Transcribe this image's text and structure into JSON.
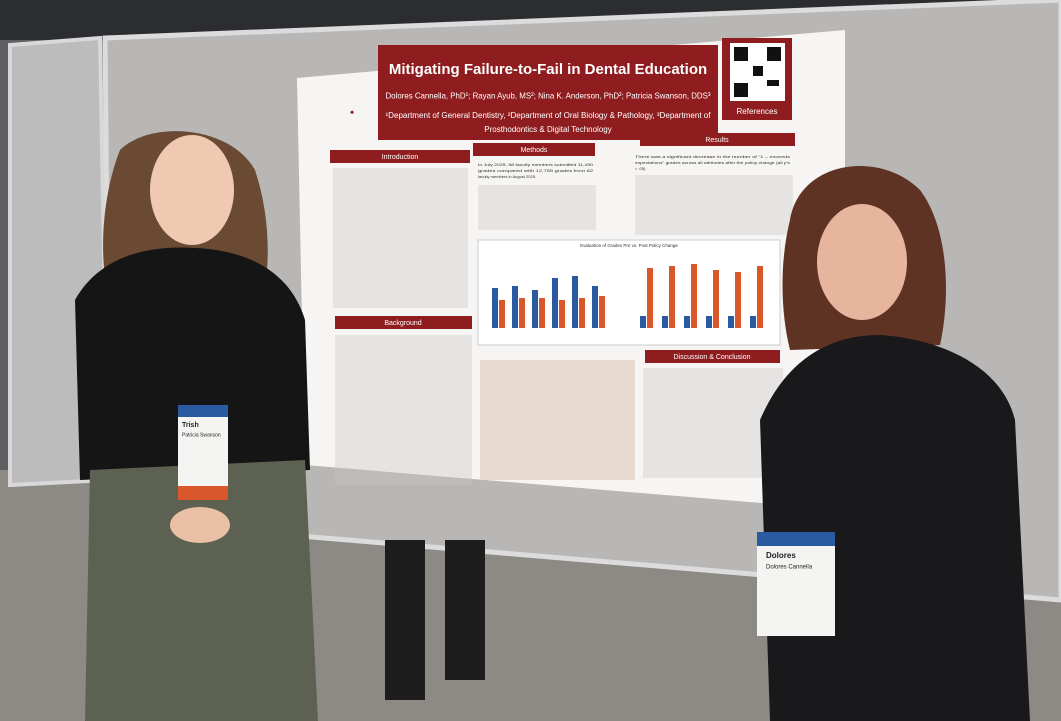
{
  "poster": {
    "title": "Mitigating Failure-to-Fail in Dental Education",
    "authors": "Dolores Cannella, PhD¹; Rayan Ayub, MS²; Nina K. Anderson, PhD²; Patricia Swanson, DDS³",
    "affiliations": [
      "¹Department of General Dentistry, ²Department of Oral Biology & Pathology, ³Department of",
      "Prosthodontics & Digital Technology"
    ],
    "qr_label": "References",
    "sections": {
      "introduction": "Introduction",
      "methods": "Methods",
      "results": "Results",
      "background": "Background",
      "discussion": "Discussion & Conclusion"
    },
    "methods_text": [
      "In July 2025, 58 faculty members submitted 11,490",
      "grades compared with 12,755 grades from 62",
      "faculty members in August 2025."
    ],
    "results_text": [
      "There was a significant decrease in the number of \"1 – exceeds",
      "expectations\" grades across all attributes after the policy change (all p's",
      "< .05)."
    ],
    "chart_title": "Evaluation of Grades Pre vs. Post Policy Change"
  },
  "badges": [
    {
      "first": "Trish",
      "full": "Patricia Swanson"
    },
    {
      "first": "Dolores",
      "full": "Dolores Cannella"
    }
  ]
}
